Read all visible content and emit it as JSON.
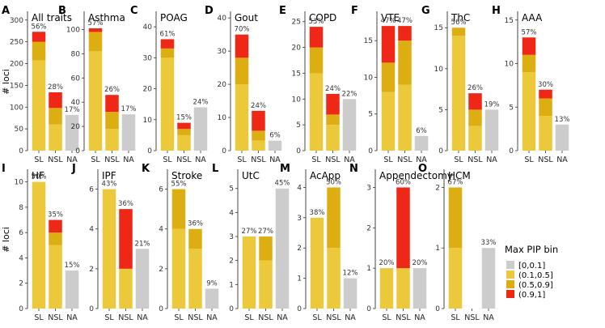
{
  "y_axis_label": "# loci",
  "colors": {
    "[0,0.1]": "#cccccc",
    "(0.1,0.5]": "#ecc93a",
    "(0.5,0.9]": "#ddae12",
    "(0.9,1]": "#ee2717"
  },
  "legend": {
    "title": "Max PIP bin",
    "items": [
      {
        "label": "[0,0.1]",
        "key": "[0,0.1]"
      },
      {
        "label": "(0.1,0.5]",
        "key": "(0.1,0.5]"
      },
      {
        "label": "(0.5,0.9]",
        "key": "(0.5,0.9]"
      },
      {
        "label": "(0.9,1]",
        "key": "(0.9,1]"
      }
    ]
  },
  "chart_data": [
    {
      "type": "bar",
      "panel": "A",
      "title": "All traits",
      "categories": [
        "SL",
        "NSL",
        "NA"
      ],
      "ylim": [
        0,
        320
      ],
      "yticks": [
        0,
        50,
        100,
        150,
        200,
        250,
        300
      ],
      "series": [
        {
          "name": "[0,0.1]",
          "values": [
            0,
            0,
            82
          ]
        },
        {
          "name": "(0.1,0.5]",
          "values": [
            207,
            60,
            0
          ]
        },
        {
          "name": "(0.5,0.9]",
          "values": [
            43,
            38,
            0
          ]
        },
        {
          "name": "(0.9,1]",
          "values": [
            23,
            36,
            0
          ]
        }
      ],
      "percent_labels": [
        "56%",
        "28%",
        "17%"
      ]
    },
    {
      "type": "bar",
      "panel": "B",
      "title": "Asthma",
      "categories": [
        "SL",
        "NSL",
        "NA"
      ],
      "ylim": [
        0,
        115
      ],
      "yticks": [
        0,
        20,
        40,
        60,
        80,
        100
      ],
      "series": [
        {
          "name": "[0,0.1]",
          "values": [
            0,
            0,
            30
          ]
        },
        {
          "name": "(0.1,0.5]",
          "values": [
            82,
            18,
            0
          ]
        },
        {
          "name": "(0.5,0.9]",
          "values": [
            16,
            14,
            0
          ]
        },
        {
          "name": "(0.9,1]",
          "values": [
            3,
            14,
            0
          ]
        }
      ],
      "percent_labels": [
        "57%",
        "26%",
        "17%"
      ]
    },
    {
      "type": "bar",
      "panel": "C",
      "title": "POAG",
      "categories": [
        "SL",
        "NSL",
        "NA"
      ],
      "ylim": [
        0,
        45
      ],
      "yticks": [
        0,
        10,
        20,
        30,
        40
      ],
      "series": [
        {
          "name": "[0,0.1]",
          "values": [
            0,
            0,
            14
          ]
        },
        {
          "name": "(0.1,0.5]",
          "values": [
            30,
            5,
            0
          ]
        },
        {
          "name": "(0.5,0.9]",
          "values": [
            3,
            2,
            0
          ]
        },
        {
          "name": "(0.9,1]",
          "values": [
            3,
            2,
            0
          ]
        }
      ],
      "percent_labels": [
        "61%",
        "15%",
        "24%"
      ]
    },
    {
      "type": "bar",
      "panel": "D",
      "title": "Gout",
      "categories": [
        "SL",
        "NSL",
        "NA"
      ],
      "ylim": [
        0,
        42
      ],
      "yticks": [
        0,
        10,
        20,
        30,
        40
      ],
      "series": [
        {
          "name": "[0,0.1]",
          "values": [
            0,
            0,
            3
          ]
        },
        {
          "name": "(0.1,0.5]",
          "values": [
            20,
            3,
            0
          ]
        },
        {
          "name": "(0.5,0.9]",
          "values": [
            8,
            3,
            0
          ]
        },
        {
          "name": "(0.9,1]",
          "values": [
            7,
            6,
            0
          ]
        }
      ],
      "percent_labels": [
        "70%",
        "24%",
        "6%"
      ]
    },
    {
      "type": "bar",
      "panel": "E",
      "title": "COPD",
      "categories": [
        "SL",
        "NSL",
        "NA"
      ],
      "ylim": [
        0,
        27
      ],
      "yticks": [
        0,
        5,
        10,
        15,
        20,
        25
      ],
      "series": [
        {
          "name": "[0,0.1]",
          "values": [
            0,
            0,
            10
          ]
        },
        {
          "name": "(0.1,0.5]",
          "values": [
            15,
            5,
            0
          ]
        },
        {
          "name": "(0.5,0.9]",
          "values": [
            5,
            2,
            0
          ]
        },
        {
          "name": "(0.9,1]",
          "values": [
            4,
            4,
            0
          ]
        }
      ],
      "percent_labels": [
        "53%",
        "24%",
        "22%"
      ]
    },
    {
      "type": "bar",
      "panel": "F",
      "title": "VTE",
      "categories": [
        "SL",
        "NSL",
        "NA"
      ],
      "ylim": [
        0,
        19
      ],
      "yticks": [
        0,
        5,
        10,
        15
      ],
      "series": [
        {
          "name": "[0,0.1]",
          "values": [
            0,
            0,
            2
          ]
        },
        {
          "name": "(0.1,0.5]",
          "values": [
            8,
            9,
            0
          ]
        },
        {
          "name": "(0.5,0.9]",
          "values": [
            4,
            6,
            0
          ]
        },
        {
          "name": "(0.9,1]",
          "values": [
            5,
            2,
            0
          ]
        }
      ],
      "percent_labels": [
        "47%",
        "47%",
        "6%"
      ]
    },
    {
      "type": "bar",
      "panel": "G",
      "title": "ThC",
      "categories": [
        "SL",
        "NSL",
        "NA"
      ],
      "ylim": [
        0,
        17
      ],
      "yticks": [
        0,
        5,
        10,
        15
      ],
      "series": [
        {
          "name": "[0,0.1]",
          "values": [
            0,
            0,
            5
          ]
        },
        {
          "name": "(0.1,0.5]",
          "values": [
            14,
            3,
            0
          ]
        },
        {
          "name": "(0.5,0.9]",
          "values": [
            1,
            2,
            0
          ]
        },
        {
          "name": "(0.9,1]",
          "values": [
            0,
            2,
            0
          ]
        }
      ],
      "percent_labels": [
        "56%",
        "26%",
        "19%"
      ]
    },
    {
      "type": "bar",
      "panel": "H",
      "title": "AAA",
      "categories": [
        "SL",
        "NSL",
        "NA"
      ],
      "ylim": [
        0,
        16
      ],
      "yticks": [
        0,
        5,
        10,
        15
      ],
      "series": [
        {
          "name": "[0,0.1]",
          "values": [
            0,
            0,
            3
          ]
        },
        {
          "name": "(0.1,0.5]",
          "values": [
            9,
            4,
            0
          ]
        },
        {
          "name": "(0.5,0.9]",
          "values": [
            2,
            2,
            0
          ]
        },
        {
          "name": "(0.9,1]",
          "values": [
            2,
            1,
            0
          ]
        }
      ],
      "percent_labels": [
        "57%",
        "30%",
        "13%"
      ]
    },
    {
      "type": "bar",
      "panel": "I",
      "title": "HF",
      "categories": [
        "SL",
        "NSL",
        "NA"
      ],
      "ylim": [
        0,
        11
      ],
      "yticks": [
        0,
        2,
        4,
        6,
        8,
        10
      ],
      "series": [
        {
          "name": "[0,0.1]",
          "values": [
            0,
            0,
            3
          ]
        },
        {
          "name": "(0.1,0.5]",
          "values": [
            10,
            5,
            0
          ]
        },
        {
          "name": "(0.5,0.9]",
          "values": [
            0,
            1,
            0
          ]
        },
        {
          "name": "(0.9,1]",
          "values": [
            0,
            1,
            0
          ]
        }
      ],
      "percent_labels": [
        "50%",
        "35%",
        "15%"
      ]
    },
    {
      "type": "bar",
      "panel": "J",
      "title": "IPF",
      "categories": [
        "SL",
        "NSL",
        "NA"
      ],
      "ylim": [
        0,
        7
      ],
      "yticks": [
        0,
        2,
        4,
        6
      ],
      "series": [
        {
          "name": "[0,0.1]",
          "values": [
            0,
            0,
            3
          ]
        },
        {
          "name": "(0.1,0.5]",
          "values": [
            6,
            2,
            0
          ]
        },
        {
          "name": "(0.5,0.9]",
          "values": [
            0,
            0,
            0
          ]
        },
        {
          "name": "(0.9,1]",
          "values": [
            0,
            3,
            0
          ]
        }
      ],
      "percent_labels": [
        "43%",
        "36%",
        "21%"
      ]
    },
    {
      "type": "bar",
      "panel": "K",
      "title": "Stroke",
      "categories": [
        "SL",
        "NSL",
        "NA"
      ],
      "ylim": [
        0,
        7
      ],
      "yticks": [
        0,
        2,
        4,
        6
      ],
      "series": [
        {
          "name": "[0,0.1]",
          "values": [
            0,
            0,
            1
          ]
        },
        {
          "name": "(0.1,0.5]",
          "values": [
            4,
            3,
            0
          ]
        },
        {
          "name": "(0.5,0.9]",
          "values": [
            2,
            1,
            0
          ]
        },
        {
          "name": "(0.9,1]",
          "values": [
            0,
            0,
            0
          ]
        }
      ],
      "percent_labels": [
        "55%",
        "36%",
        "9%"
      ]
    },
    {
      "type": "bar",
      "panel": "L",
      "title": "UtC",
      "categories": [
        "SL",
        "NSL",
        "NA"
      ],
      "ylim": [
        0,
        5.8
      ],
      "yticks": [
        0,
        1,
        2,
        3,
        4,
        5
      ],
      "series": [
        {
          "name": "[0,0.1]",
          "values": [
            0,
            0,
            5
          ]
        },
        {
          "name": "(0.1,0.5]",
          "values": [
            3,
            2,
            0
          ]
        },
        {
          "name": "(0.5,0.9]",
          "values": [
            0,
            1,
            0
          ]
        },
        {
          "name": "(0.9,1]",
          "values": [
            0,
            0,
            0
          ]
        }
      ],
      "percent_labels": [
        "27%",
        "27%",
        "45%"
      ]
    },
    {
      "type": "bar",
      "panel": "M",
      "title": "AcApp",
      "categories": [
        "SL",
        "NSL",
        "NA"
      ],
      "ylim": [
        0,
        4.6
      ],
      "yticks": [
        0,
        1,
        2,
        3,
        4
      ],
      "series": [
        {
          "name": "[0,0.1]",
          "values": [
            0,
            0,
            1
          ]
        },
        {
          "name": "(0.1,0.5]",
          "values": [
            3,
            2,
            0
          ]
        },
        {
          "name": "(0.5,0.9]",
          "values": [
            0,
            2,
            0
          ]
        },
        {
          "name": "(0.9,1]",
          "values": [
            0,
            0,
            0
          ]
        }
      ],
      "percent_labels": [
        "38%",
        "50%",
        "12%"
      ]
    },
    {
      "type": "bar",
      "panel": "N",
      "title": "Appendectomy",
      "categories": [
        "SL",
        "NSL",
        "NA"
      ],
      "ylim": [
        0,
        3.45
      ],
      "yticks": [
        0,
        1,
        2,
        3
      ],
      "series": [
        {
          "name": "[0,0.1]",
          "values": [
            0,
            0,
            1
          ]
        },
        {
          "name": "(0.1,0.5]",
          "values": [
            1,
            1,
            0
          ]
        },
        {
          "name": "(0.5,0.9]",
          "values": [
            0,
            0,
            0
          ]
        },
        {
          "name": "(0.9,1]",
          "values": [
            0,
            2,
            0
          ]
        }
      ],
      "percent_labels": [
        "20%",
        "60%",
        "20%"
      ]
    },
    {
      "type": "bar",
      "panel": "O",
      "title": "HCM",
      "categories": [
        "SL",
        "NSL",
        "NA"
      ],
      "ylim": [
        0,
        2.3
      ],
      "yticks": [
        0,
        1,
        2
      ],
      "series": [
        {
          "name": "[0,0.1]",
          "values": [
            0,
            0,
            1
          ]
        },
        {
          "name": "(0.1,0.5]",
          "values": [
            1,
            0,
            0
          ]
        },
        {
          "name": "(0.5,0.9]",
          "values": [
            1,
            0,
            0
          ]
        },
        {
          "name": "(0.9,1]",
          "values": [
            0,
            0,
            0
          ]
        }
      ],
      "percent_labels": [
        "67%",
        "",
        "33%"
      ]
    }
  ]
}
